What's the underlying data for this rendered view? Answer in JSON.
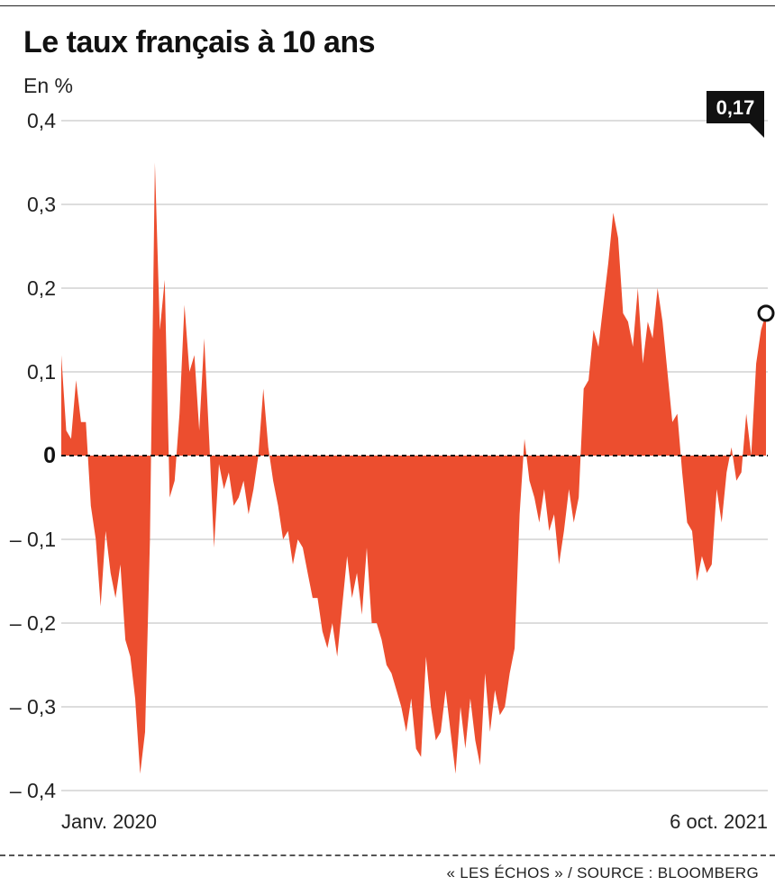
{
  "title": "Le taux français à 10 ans",
  "unit": "En %",
  "source": "« LES ÉCHOS » / SOURCE : BLOOMBERG",
  "colors": {
    "fill": "#ec4e2f",
    "text": "#1a1a1a",
    "grid": "#d2d2d2",
    "callout": "#111111"
  },
  "chart_data": {
    "type": "area",
    "title": "Le taux français à 10 ans",
    "ylabel": "En %",
    "xlabel": "",
    "ylim": [
      -0.4,
      0.4
    ],
    "yticks": [
      "0,4",
      "0,3",
      "0,2",
      "0,1",
      "0",
      "– 0,1",
      "– 0,2",
      "– 0,3",
      "– 0,4"
    ],
    "ytick_values": [
      0.4,
      0.3,
      0.2,
      0.1,
      0,
      -0.1,
      -0.2,
      -0.3,
      -0.4
    ],
    "x_start_label": "Janv. 2020",
    "x_end_label": "6 oct. 2021",
    "grid": true,
    "zero_line": "dashed",
    "last_value": 0.17,
    "last_value_label": "0,17",
    "series": [
      {
        "values": [
          0.12,
          0.03,
          0.02,
          0.09,
          0.04,
          0.04,
          -0.06,
          -0.1,
          -0.18,
          -0.09,
          -0.14,
          -0.17,
          -0.13,
          -0.22,
          -0.24,
          -0.29,
          -0.38,
          -0.33,
          -0.1,
          0.35,
          0.15,
          0.21,
          -0.05,
          -0.03,
          0.05,
          0.18,
          0.1,
          0.12,
          0.03,
          0.14,
          0.02,
          -0.11,
          -0.01,
          -0.04,
          -0.02,
          -0.06,
          -0.05,
          -0.03,
          -0.07,
          -0.04,
          0.0,
          0.08,
          0.01,
          -0.03,
          -0.06,
          -0.1,
          -0.09,
          -0.13,
          -0.1,
          -0.11,
          -0.14,
          -0.17,
          -0.17,
          -0.21,
          -0.23,
          -0.2,
          -0.24,
          -0.18,
          -0.12,
          -0.17,
          -0.14,
          -0.19,
          -0.11,
          -0.2,
          -0.2,
          -0.22,
          -0.25,
          -0.26,
          -0.28,
          -0.3,
          -0.33,
          -0.29,
          -0.35,
          -0.36,
          -0.24,
          -0.3,
          -0.34,
          -0.33,
          -0.28,
          -0.33,
          -0.38,
          -0.3,
          -0.35,
          -0.29,
          -0.34,
          -0.37,
          -0.26,
          -0.33,
          -0.28,
          -0.31,
          -0.3,
          -0.26,
          -0.23,
          -0.07,
          0.02,
          -0.03,
          -0.05,
          -0.08,
          -0.04,
          -0.09,
          -0.07,
          -0.13,
          -0.09,
          -0.04,
          -0.08,
          -0.05,
          0.08,
          0.09,
          0.15,
          0.13,
          0.18,
          0.23,
          0.29,
          0.26,
          0.17,
          0.16,
          0.13,
          0.2,
          0.11,
          0.16,
          0.14,
          0.2,
          0.16,
          0.1,
          0.04,
          0.05,
          -0.02,
          -0.08,
          -0.09,
          -0.15,
          -0.12,
          -0.14,
          -0.13,
          -0.04,
          -0.08,
          -0.02,
          0.01,
          -0.03,
          -0.02,
          0.05,
          0.0,
          0.11,
          0.15,
          0.17
        ]
      }
    ]
  }
}
